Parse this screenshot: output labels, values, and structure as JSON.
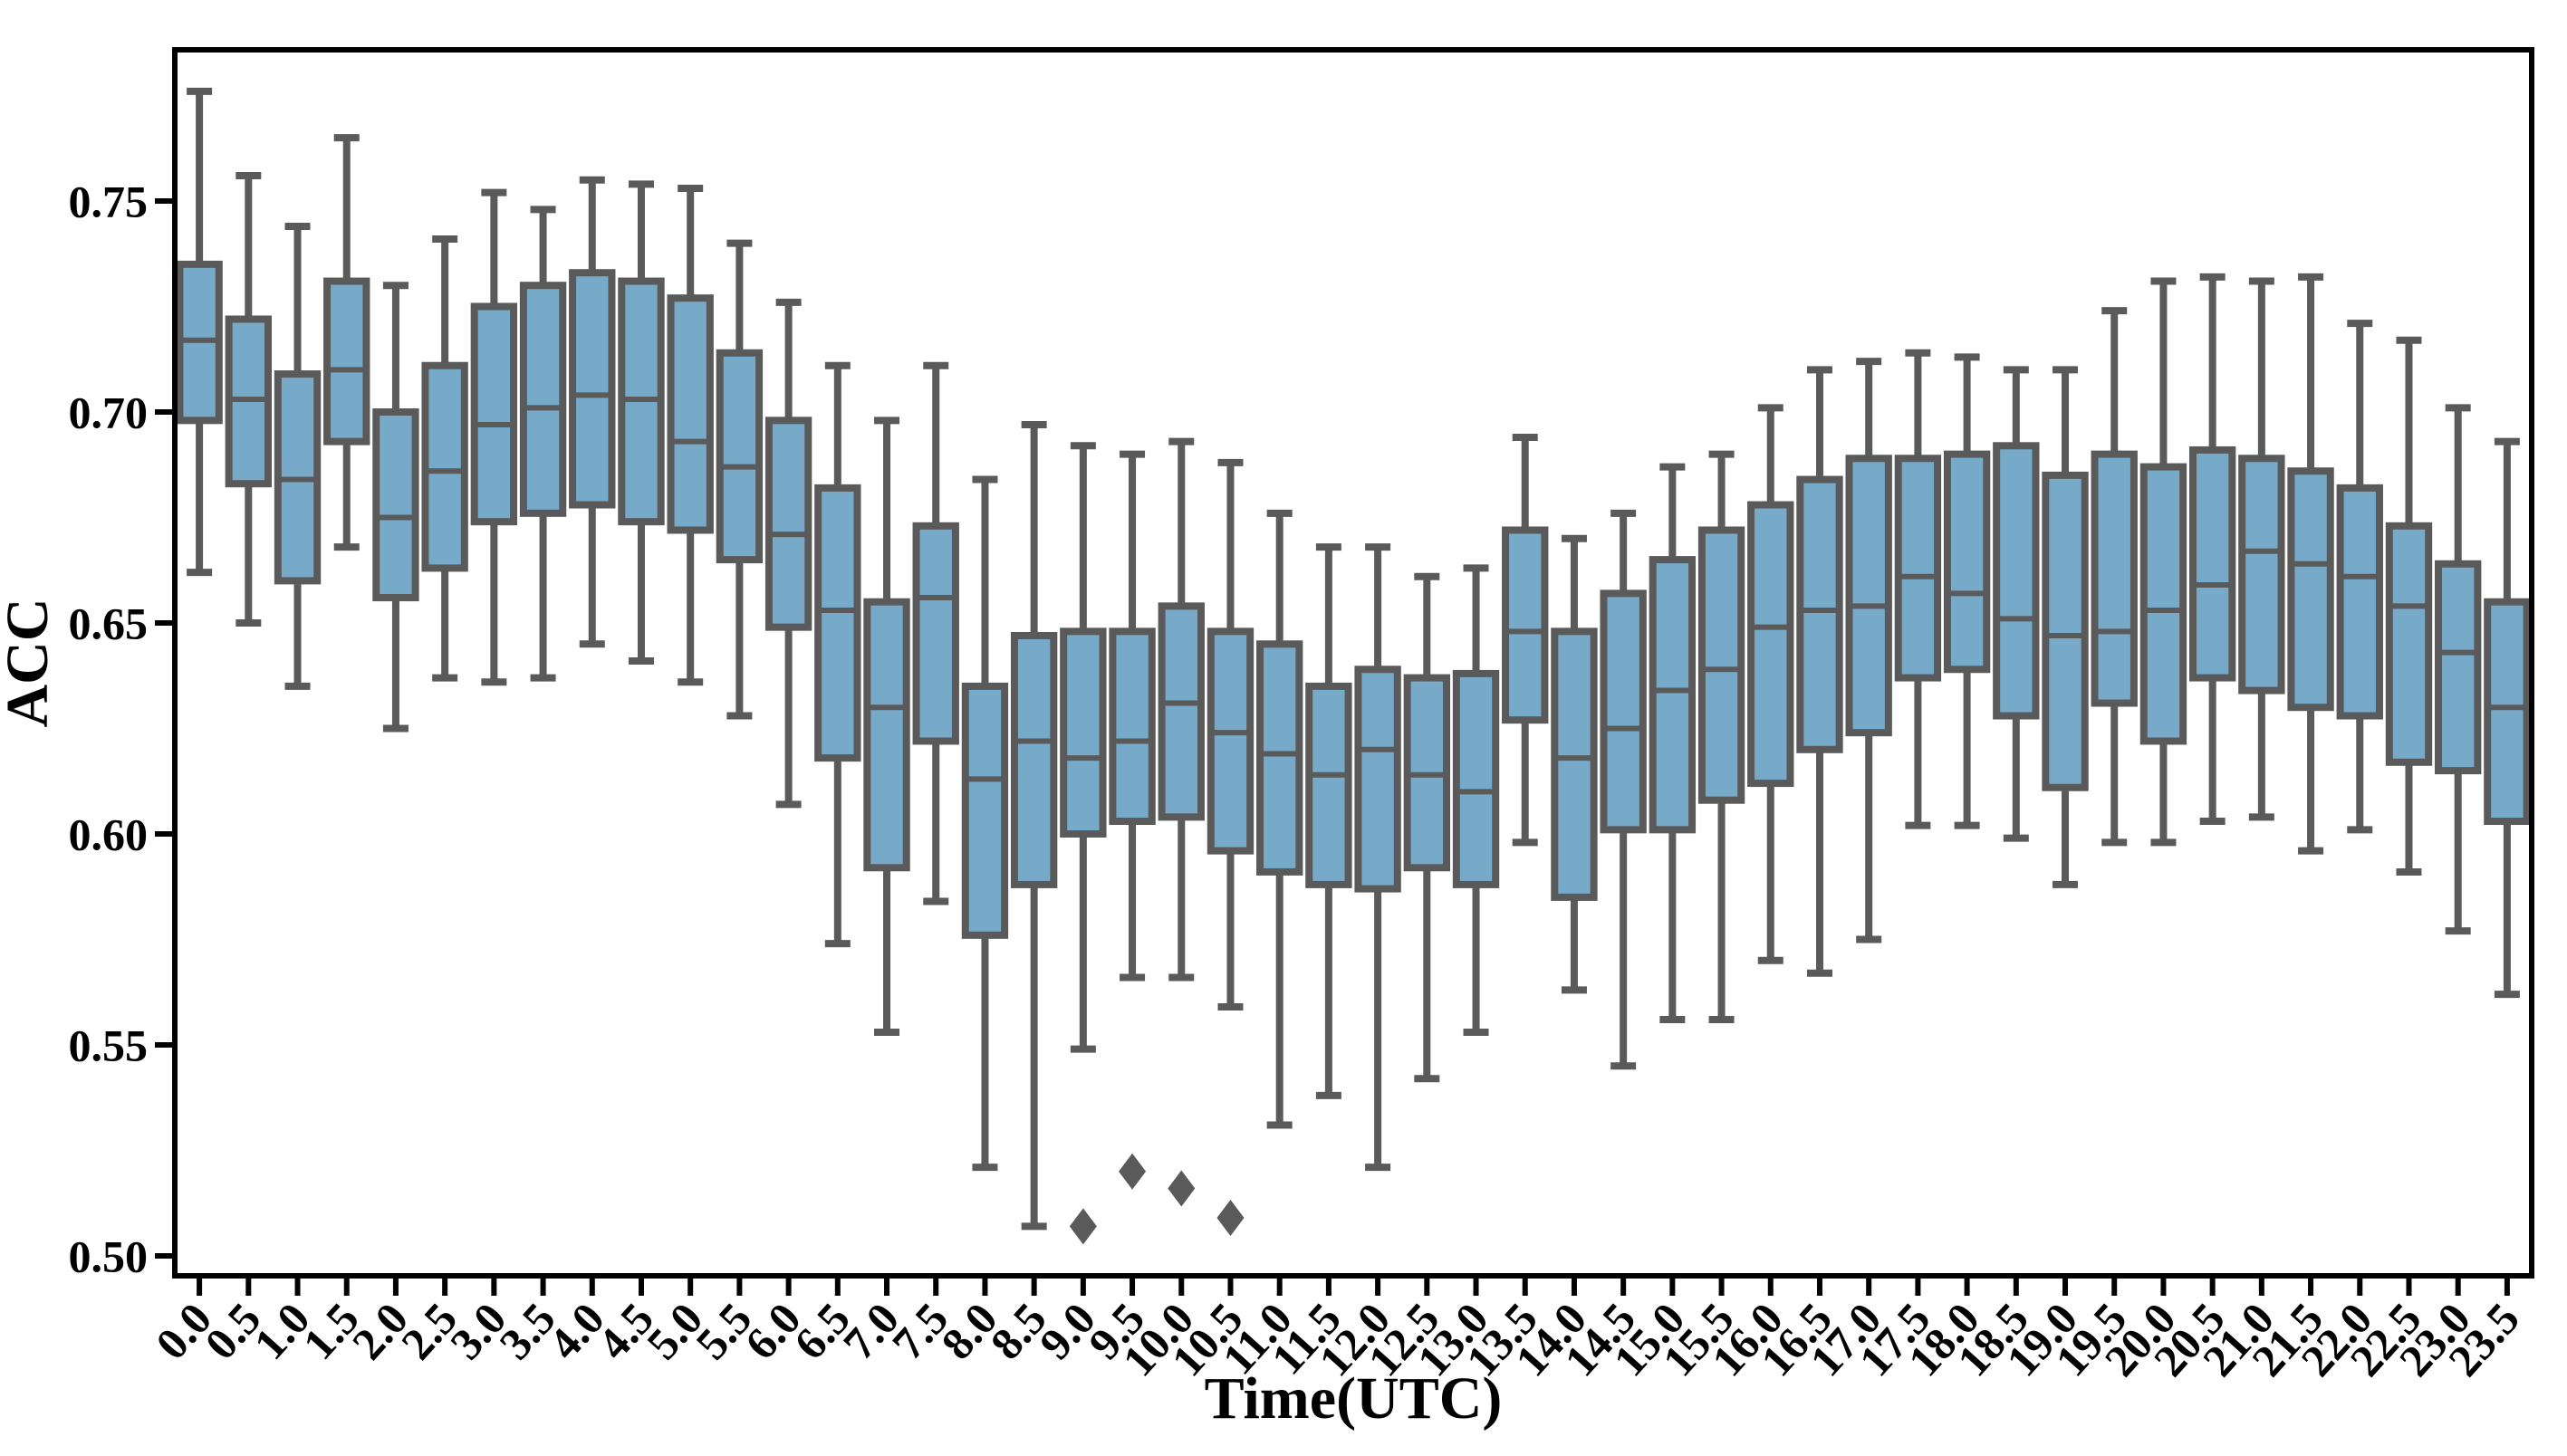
{
  "figure": {
    "title": "",
    "xlabel": "Time(UTC)",
    "ylabel": "ACC"
  },
  "chart_data": {
    "type": "box",
    "title": "",
    "xlabel": "Time(UTC)",
    "ylabel": "ACC",
    "grid": false,
    "legend_position": "none",
    "ylim": [
      0.495,
      0.786
    ],
    "yticks": [
      "0.50",
      "0.55",
      "0.60",
      "0.65",
      "0.70",
      "0.75"
    ],
    "categories": [
      "0.0",
      "0.5",
      "1.0",
      "1.5",
      "2.0",
      "2.5",
      "3.0",
      "3.5",
      "4.0",
      "4.5",
      "5.0",
      "5.5",
      "6.0",
      "6.5",
      "7.0",
      "7.5",
      "8.0",
      "8.5",
      "9.0",
      "9.5",
      "10.0",
      "10.5",
      "11.0",
      "11.5",
      "12.0",
      "12.5",
      "13.0",
      "13.5",
      "14.0",
      "14.5",
      "15.0",
      "15.5",
      "16.0",
      "16.5",
      "17.0",
      "17.5",
      "18.0",
      "18.5",
      "19.0",
      "19.5",
      "20.0",
      "20.5",
      "21.0",
      "21.5",
      "22.0",
      "22.5",
      "23.0",
      "23.5"
    ],
    "boxes": [
      {
        "time": "0.0",
        "whisker_low": 0.662,
        "q1": 0.698,
        "median": 0.717,
        "q3": 0.735,
        "whisker_high": 0.776,
        "outliers": []
      },
      {
        "time": "0.5",
        "whisker_low": 0.65,
        "q1": 0.683,
        "median": 0.703,
        "q3": 0.722,
        "whisker_high": 0.756,
        "outliers": []
      },
      {
        "time": "1.0",
        "whisker_low": 0.635,
        "q1": 0.66,
        "median": 0.684,
        "q3": 0.709,
        "whisker_high": 0.744,
        "outliers": []
      },
      {
        "time": "1.5",
        "whisker_low": 0.668,
        "q1": 0.693,
        "median": 0.71,
        "q3": 0.731,
        "whisker_high": 0.765,
        "outliers": []
      },
      {
        "time": "2.0",
        "whisker_low": 0.625,
        "q1": 0.656,
        "median": 0.675,
        "q3": 0.7,
        "whisker_high": 0.73,
        "outliers": []
      },
      {
        "time": "2.5",
        "whisker_low": 0.637,
        "q1": 0.663,
        "median": 0.686,
        "q3": 0.711,
        "whisker_high": 0.741,
        "outliers": []
      },
      {
        "time": "3.0",
        "whisker_low": 0.636,
        "q1": 0.674,
        "median": 0.697,
        "q3": 0.725,
        "whisker_high": 0.752,
        "outliers": []
      },
      {
        "time": "3.5",
        "whisker_low": 0.637,
        "q1": 0.676,
        "median": 0.701,
        "q3": 0.73,
        "whisker_high": 0.748,
        "outliers": []
      },
      {
        "time": "4.0",
        "whisker_low": 0.645,
        "q1": 0.678,
        "median": 0.704,
        "q3": 0.733,
        "whisker_high": 0.755,
        "outliers": []
      },
      {
        "time": "4.5",
        "whisker_low": 0.641,
        "q1": 0.674,
        "median": 0.703,
        "q3": 0.731,
        "whisker_high": 0.754,
        "outliers": []
      },
      {
        "time": "5.0",
        "whisker_low": 0.636,
        "q1": 0.672,
        "median": 0.693,
        "q3": 0.727,
        "whisker_high": 0.753,
        "outliers": []
      },
      {
        "time": "5.5",
        "whisker_low": 0.628,
        "q1": 0.665,
        "median": 0.687,
        "q3": 0.714,
        "whisker_high": 0.74,
        "outliers": []
      },
      {
        "time": "6.0",
        "whisker_low": 0.607,
        "q1": 0.649,
        "median": 0.671,
        "q3": 0.698,
        "whisker_high": 0.726,
        "outliers": []
      },
      {
        "time": "6.5",
        "whisker_low": 0.574,
        "q1": 0.618,
        "median": 0.653,
        "q3": 0.682,
        "whisker_high": 0.711,
        "outliers": []
      },
      {
        "time": "7.0",
        "whisker_low": 0.553,
        "q1": 0.592,
        "median": 0.63,
        "q3": 0.655,
        "whisker_high": 0.698,
        "outliers": []
      },
      {
        "time": "7.5",
        "whisker_low": 0.584,
        "q1": 0.622,
        "median": 0.656,
        "q3": 0.673,
        "whisker_high": 0.711,
        "outliers": []
      },
      {
        "time": "8.0",
        "whisker_low": 0.521,
        "q1": 0.576,
        "median": 0.613,
        "q3": 0.635,
        "whisker_high": 0.684,
        "outliers": []
      },
      {
        "time": "8.5",
        "whisker_low": 0.507,
        "q1": 0.588,
        "median": 0.622,
        "q3": 0.647,
        "whisker_high": 0.697,
        "outliers": []
      },
      {
        "time": "9.0",
        "whisker_low": 0.549,
        "q1": 0.6,
        "median": 0.618,
        "q3": 0.648,
        "whisker_high": 0.692,
        "outliers": [
          0.507
        ]
      },
      {
        "time": "9.5",
        "whisker_low": 0.566,
        "q1": 0.603,
        "median": 0.622,
        "q3": 0.648,
        "whisker_high": 0.69,
        "outliers": [
          0.52
        ]
      },
      {
        "time": "10.0",
        "whisker_low": 0.566,
        "q1": 0.604,
        "median": 0.631,
        "q3": 0.654,
        "whisker_high": 0.693,
        "outliers": [
          0.516
        ]
      },
      {
        "time": "10.5",
        "whisker_low": 0.559,
        "q1": 0.596,
        "median": 0.624,
        "q3": 0.648,
        "whisker_high": 0.688,
        "outliers": [
          0.509
        ]
      },
      {
        "time": "11.0",
        "whisker_low": 0.531,
        "q1": 0.591,
        "median": 0.619,
        "q3": 0.645,
        "whisker_high": 0.676,
        "outliers": []
      },
      {
        "time": "11.5",
        "whisker_low": 0.538,
        "q1": 0.588,
        "median": 0.614,
        "q3": 0.635,
        "whisker_high": 0.668,
        "outliers": []
      },
      {
        "time": "12.0",
        "whisker_low": 0.521,
        "q1": 0.587,
        "median": 0.62,
        "q3": 0.639,
        "whisker_high": 0.668,
        "outliers": []
      },
      {
        "time": "12.5",
        "whisker_low": 0.542,
        "q1": 0.592,
        "median": 0.614,
        "q3": 0.637,
        "whisker_high": 0.661,
        "outliers": []
      },
      {
        "time": "13.0",
        "whisker_low": 0.553,
        "q1": 0.588,
        "median": 0.61,
        "q3": 0.638,
        "whisker_high": 0.663,
        "outliers": []
      },
      {
        "time": "13.5",
        "whisker_low": 0.598,
        "q1": 0.627,
        "median": 0.648,
        "q3": 0.672,
        "whisker_high": 0.694,
        "outliers": []
      },
      {
        "time": "14.0",
        "whisker_low": 0.563,
        "q1": 0.585,
        "median": 0.618,
        "q3": 0.648,
        "whisker_high": 0.67,
        "outliers": []
      },
      {
        "time": "14.5",
        "whisker_low": 0.545,
        "q1": 0.601,
        "median": 0.625,
        "q3": 0.657,
        "whisker_high": 0.676,
        "outliers": []
      },
      {
        "time": "15.0",
        "whisker_low": 0.556,
        "q1": 0.601,
        "median": 0.634,
        "q3": 0.665,
        "whisker_high": 0.687,
        "outliers": []
      },
      {
        "time": "15.5",
        "whisker_low": 0.556,
        "q1": 0.608,
        "median": 0.639,
        "q3": 0.672,
        "whisker_high": 0.69,
        "outliers": []
      },
      {
        "time": "16.0",
        "whisker_low": 0.57,
        "q1": 0.612,
        "median": 0.649,
        "q3": 0.678,
        "whisker_high": 0.701,
        "outliers": []
      },
      {
        "time": "16.5",
        "whisker_low": 0.567,
        "q1": 0.62,
        "median": 0.653,
        "q3": 0.684,
        "whisker_high": 0.71,
        "outliers": []
      },
      {
        "time": "17.0",
        "whisker_low": 0.575,
        "q1": 0.624,
        "median": 0.654,
        "q3": 0.689,
        "whisker_high": 0.712,
        "outliers": []
      },
      {
        "time": "17.5",
        "whisker_low": 0.602,
        "q1": 0.637,
        "median": 0.661,
        "q3": 0.689,
        "whisker_high": 0.714,
        "outliers": []
      },
      {
        "time": "18.0",
        "whisker_low": 0.602,
        "q1": 0.639,
        "median": 0.657,
        "q3": 0.69,
        "whisker_high": 0.713,
        "outliers": []
      },
      {
        "time": "18.5",
        "whisker_low": 0.599,
        "q1": 0.628,
        "median": 0.651,
        "q3": 0.692,
        "whisker_high": 0.71,
        "outliers": []
      },
      {
        "time": "19.0",
        "whisker_low": 0.588,
        "q1": 0.611,
        "median": 0.647,
        "q3": 0.685,
        "whisker_high": 0.71,
        "outliers": []
      },
      {
        "time": "19.5",
        "whisker_low": 0.598,
        "q1": 0.631,
        "median": 0.648,
        "q3": 0.69,
        "whisker_high": 0.724,
        "outliers": []
      },
      {
        "time": "20.0",
        "whisker_low": 0.598,
        "q1": 0.622,
        "median": 0.653,
        "q3": 0.687,
        "whisker_high": 0.731,
        "outliers": []
      },
      {
        "time": "20.5",
        "whisker_low": 0.603,
        "q1": 0.637,
        "median": 0.659,
        "q3": 0.691,
        "whisker_high": 0.732,
        "outliers": []
      },
      {
        "time": "21.0",
        "whisker_low": 0.604,
        "q1": 0.634,
        "median": 0.667,
        "q3": 0.689,
        "whisker_high": 0.731,
        "outliers": []
      },
      {
        "time": "21.5",
        "whisker_low": 0.596,
        "q1": 0.63,
        "median": 0.664,
        "q3": 0.686,
        "whisker_high": 0.732,
        "outliers": []
      },
      {
        "time": "22.0",
        "whisker_low": 0.601,
        "q1": 0.628,
        "median": 0.661,
        "q3": 0.682,
        "whisker_high": 0.721,
        "outliers": []
      },
      {
        "time": "22.5",
        "whisker_low": 0.591,
        "q1": 0.617,
        "median": 0.654,
        "q3": 0.673,
        "whisker_high": 0.717,
        "outliers": []
      },
      {
        "time": "23.0",
        "whisker_low": 0.577,
        "q1": 0.615,
        "median": 0.643,
        "q3": 0.664,
        "whisker_high": 0.701,
        "outliers": []
      },
      {
        "time": "23.5",
        "whisker_low": 0.562,
        "q1": 0.603,
        "median": 0.63,
        "q3": 0.655,
        "whisker_high": 0.693,
        "outliers": []
      }
    ],
    "style": {
      "box_fill": "#77A9C9",
      "box_edge": "#5A5A5A",
      "whisker_color": "#5A5A5A",
      "median_color": "#5A5A5A",
      "outlier_color": "#5A5A5A",
      "outlier_marker": "diamond",
      "spine_color": "#000000"
    }
  }
}
